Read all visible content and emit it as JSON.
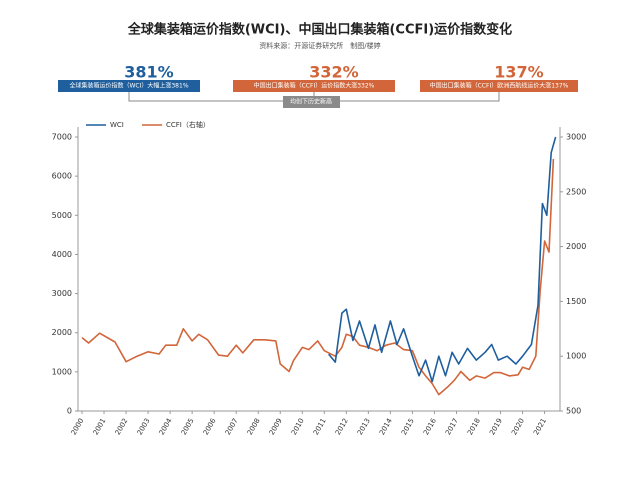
{
  "chart_data": {
    "type": "line",
    "title": "全球集装箱运价指数(WCI)、中国出口集装箱(CCFI)运价指数变化",
    "subtitle": "资料来源：开源证券研究所　制图/楼婷",
    "annotations": [
      {
        "figure": "381%",
        "text": "全球集装箱运价指数（WCI）大幅上涨381%",
        "color": "#1f5f9e"
      },
      {
        "figure": "332%",
        "text": "中国出口集装箱（CCFI）运价指数大涨332%",
        "color": "#d2663a"
      },
      {
        "figure": "137%",
        "text": "中国出口集装箱（CCFI）欧洲西航线运价大涨137%",
        "color": "#d2663a"
      }
    ],
    "note": "均创下历史新高",
    "xlim": [
      2000,
      2021.7
    ],
    "xticks": [
      2000,
      2001,
      2002,
      2003,
      2004,
      2005,
      2006,
      2007,
      2008,
      2009,
      2010,
      2011,
      2012,
      2013,
      2014,
      2015,
      2016,
      2017,
      2018,
      2019,
      2020,
      2021
    ],
    "ylim": [
      0,
      7000
    ],
    "yticks": [
      0,
      1000,
      2000,
      3000,
      4000,
      5000,
      6000,
      7000
    ],
    "y2lim": [
      500,
      3000
    ],
    "y2ticks": [
      500,
      1000,
      1500,
      2000,
      2500,
      3000
    ],
    "grid": false,
    "legend": "top-left",
    "series": [
      {
        "name": "WCI",
        "color": "#1f5f9e",
        "x": [
          2011.2,
          2011.5,
          2011.8,
          2012.0,
          2012.3,
          2012.6,
          2013.0,
          2013.3,
          2013.6,
          2014.0,
          2014.3,
          2014.6,
          2015.0,
          2015.3,
          2015.6,
          2015.9,
          2016.2,
          2016.5,
          2016.8,
          2017.1,
          2017.5,
          2017.9,
          2018.3,
          2018.6,
          2018.9,
          2019.3,
          2019.7,
          2020.0,
          2020.4,
          2020.7,
          2020.9,
          2021.1,
          2021.3,
          2021.5
        ],
        "values": [
          1450,
          1250,
          2500,
          2600,
          1800,
          2300,
          1600,
          2200,
          1500,
          2300,
          1700,
          2100,
          1400,
          900,
          1300,
          750,
          1400,
          900,
          1500,
          1200,
          1600,
          1300,
          1500,
          1700,
          1300,
          1400,
          1200,
          1400,
          1700,
          2700,
          5300,
          5000,
          6600,
          7000
        ]
      },
      {
        "name": "CCFI（右轴）",
        "color": "#d2663a",
        "axis": "y2",
        "x": [
          2000.0,
          2000.3,
          2000.8,
          2001.5,
          2002.0,
          2002.5,
          2003.0,
          2003.5,
          2003.8,
          2004.3,
          2004.6,
          2005.0,
          2005.3,
          2005.7,
          2006.2,
          2006.6,
          2007.0,
          2007.3,
          2007.8,
          2008.3,
          2008.8,
          2009.0,
          2009.4,
          2009.6,
          2010.0,
          2010.3,
          2010.7,
          2011.0,
          2011.5,
          2011.8,
          2012.0,
          2012.3,
          2012.6,
          2013.0,
          2013.4,
          2013.8,
          2014.2,
          2014.6,
          2015.0,
          2015.3,
          2015.6,
          2015.9,
          2016.2,
          2016.6,
          2016.9,
          2017.2,
          2017.6,
          2017.9,
          2018.3,
          2018.7,
          2019.0,
          2019.4,
          2019.8,
          2020.0,
          2020.3,
          2020.6,
          2020.8,
          2021.0,
          2021.2,
          2021.4
        ],
        "values": [
          1170,
          1120,
          1210,
          1130,
          950,
          1000,
          1040,
          1020,
          1100,
          1100,
          1250,
          1140,
          1200,
          1150,
          1010,
          1000,
          1100,
          1030,
          1150,
          1150,
          1140,
          930,
          860,
          960,
          1080,
          1060,
          1140,
          1050,
          1000,
          1080,
          1200,
          1180,
          1100,
          1080,
          1050,
          1100,
          1120,
          1060,
          1050,
          900,
          820,
          750,
          650,
          720,
          780,
          860,
          780,
          820,
          800,
          850,
          850,
          820,
          830,
          900,
          880,
          1000,
          1600,
          2050,
          1950,
          2800
        ]
      }
    ]
  }
}
